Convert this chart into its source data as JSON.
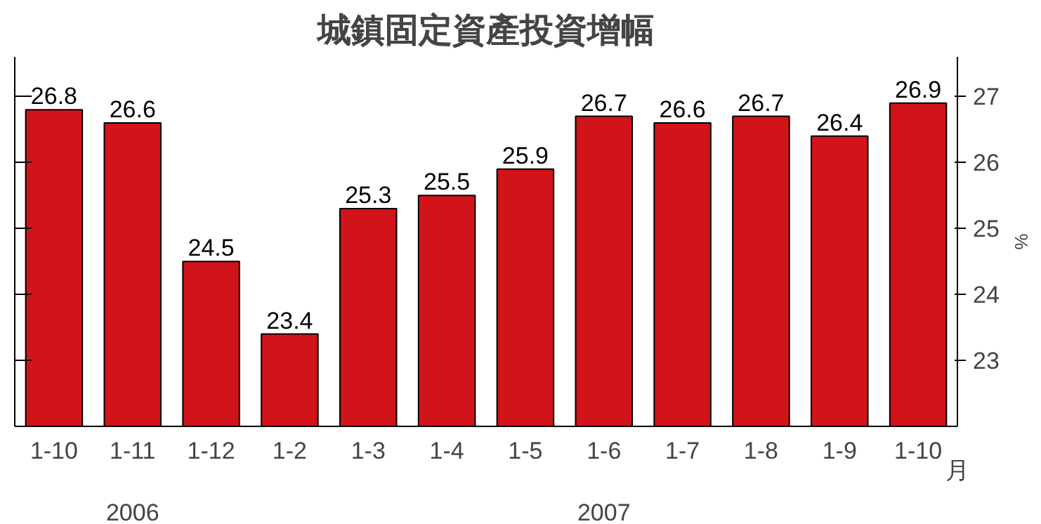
{
  "chart_data": {
    "type": "bar",
    "title": "城鎮固定資產投資增幅",
    "categories": [
      "1-10",
      "1-11",
      "1-12",
      "1-2",
      "1-3",
      "1-4",
      "1-5",
      "1-6",
      "1-7",
      "1-8",
      "1-9",
      "1-10"
    ],
    "values": [
      26.8,
      26.6,
      24.5,
      23.4,
      25.3,
      25.5,
      25.9,
      26.7,
      26.6,
      26.7,
      26.4,
      26.9
    ],
    "color": "#d0141a",
    "data_labels": true,
    "ylim": [
      22,
      27.6
    ],
    "yticks": [
      23,
      24,
      25,
      26,
      27
    ],
    "ylabel": "%",
    "xlabel": "月",
    "grid": false,
    "annotations": [
      "2006",
      "2007"
    ]
  }
}
